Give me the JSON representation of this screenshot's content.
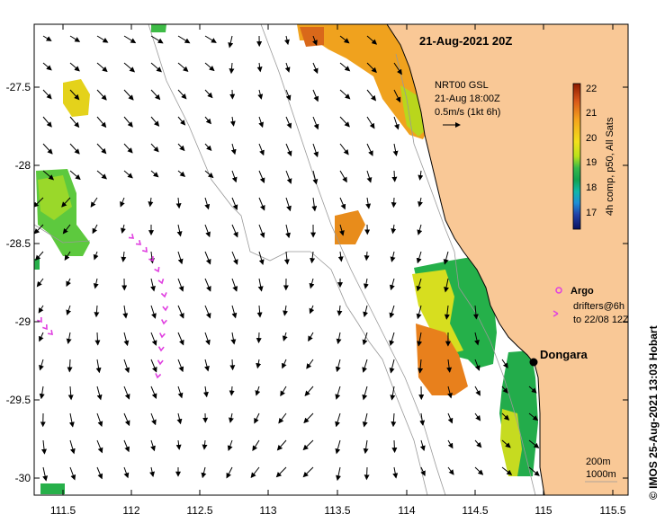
{
  "map": {
    "title": "21-Aug-2021 20Z",
    "lon_range": [
      111.3,
      115.6
    ],
    "lat_range": [
      -30.1,
      -27.1
    ],
    "lon_ticks": [
      "111.5",
      "112",
      "112.5",
      "113",
      "113.5",
      "114",
      "114.5",
      "115",
      "115.5"
    ],
    "lat_ticks": [
      "-27.5",
      "-28",
      "-28.5",
      "-29",
      "-29.5",
      "-30"
    ],
    "land_color": "#f9c896",
    "ocean_color": "#ffffff"
  },
  "current_legend": {
    "line1": "NRT00 GSL",
    "line2": "21-Aug 18:00Z",
    "line3": "0.5m/s (1kt 6h)"
  },
  "colorbar": {
    "ticks": [
      "22",
      "21",
      "20",
      "19",
      "18",
      "17"
    ],
    "label": "4h comp, p50, All Sats",
    "colors": [
      "#8b1a00",
      "#d9581a",
      "#f5a41c",
      "#f2e01b",
      "#b9e21b",
      "#37b84a",
      "#12a24f",
      "#10b7a8",
      "#1e8fd6",
      "#2242a8",
      "#0b1260"
    ]
  },
  "argo": {
    "label": "Argo",
    "color": "#e040e0"
  },
  "drifters": {
    "line1": "drifters@6h",
    "line2": "to 22/08 12Z"
  },
  "place": {
    "name": "Dongara"
  },
  "isobaths": {
    "label1": "200m",
    "label2": "1000m"
  },
  "credit": {
    "text": "© IMOS 25-Aug-2021 13:03 Hobart"
  }
}
